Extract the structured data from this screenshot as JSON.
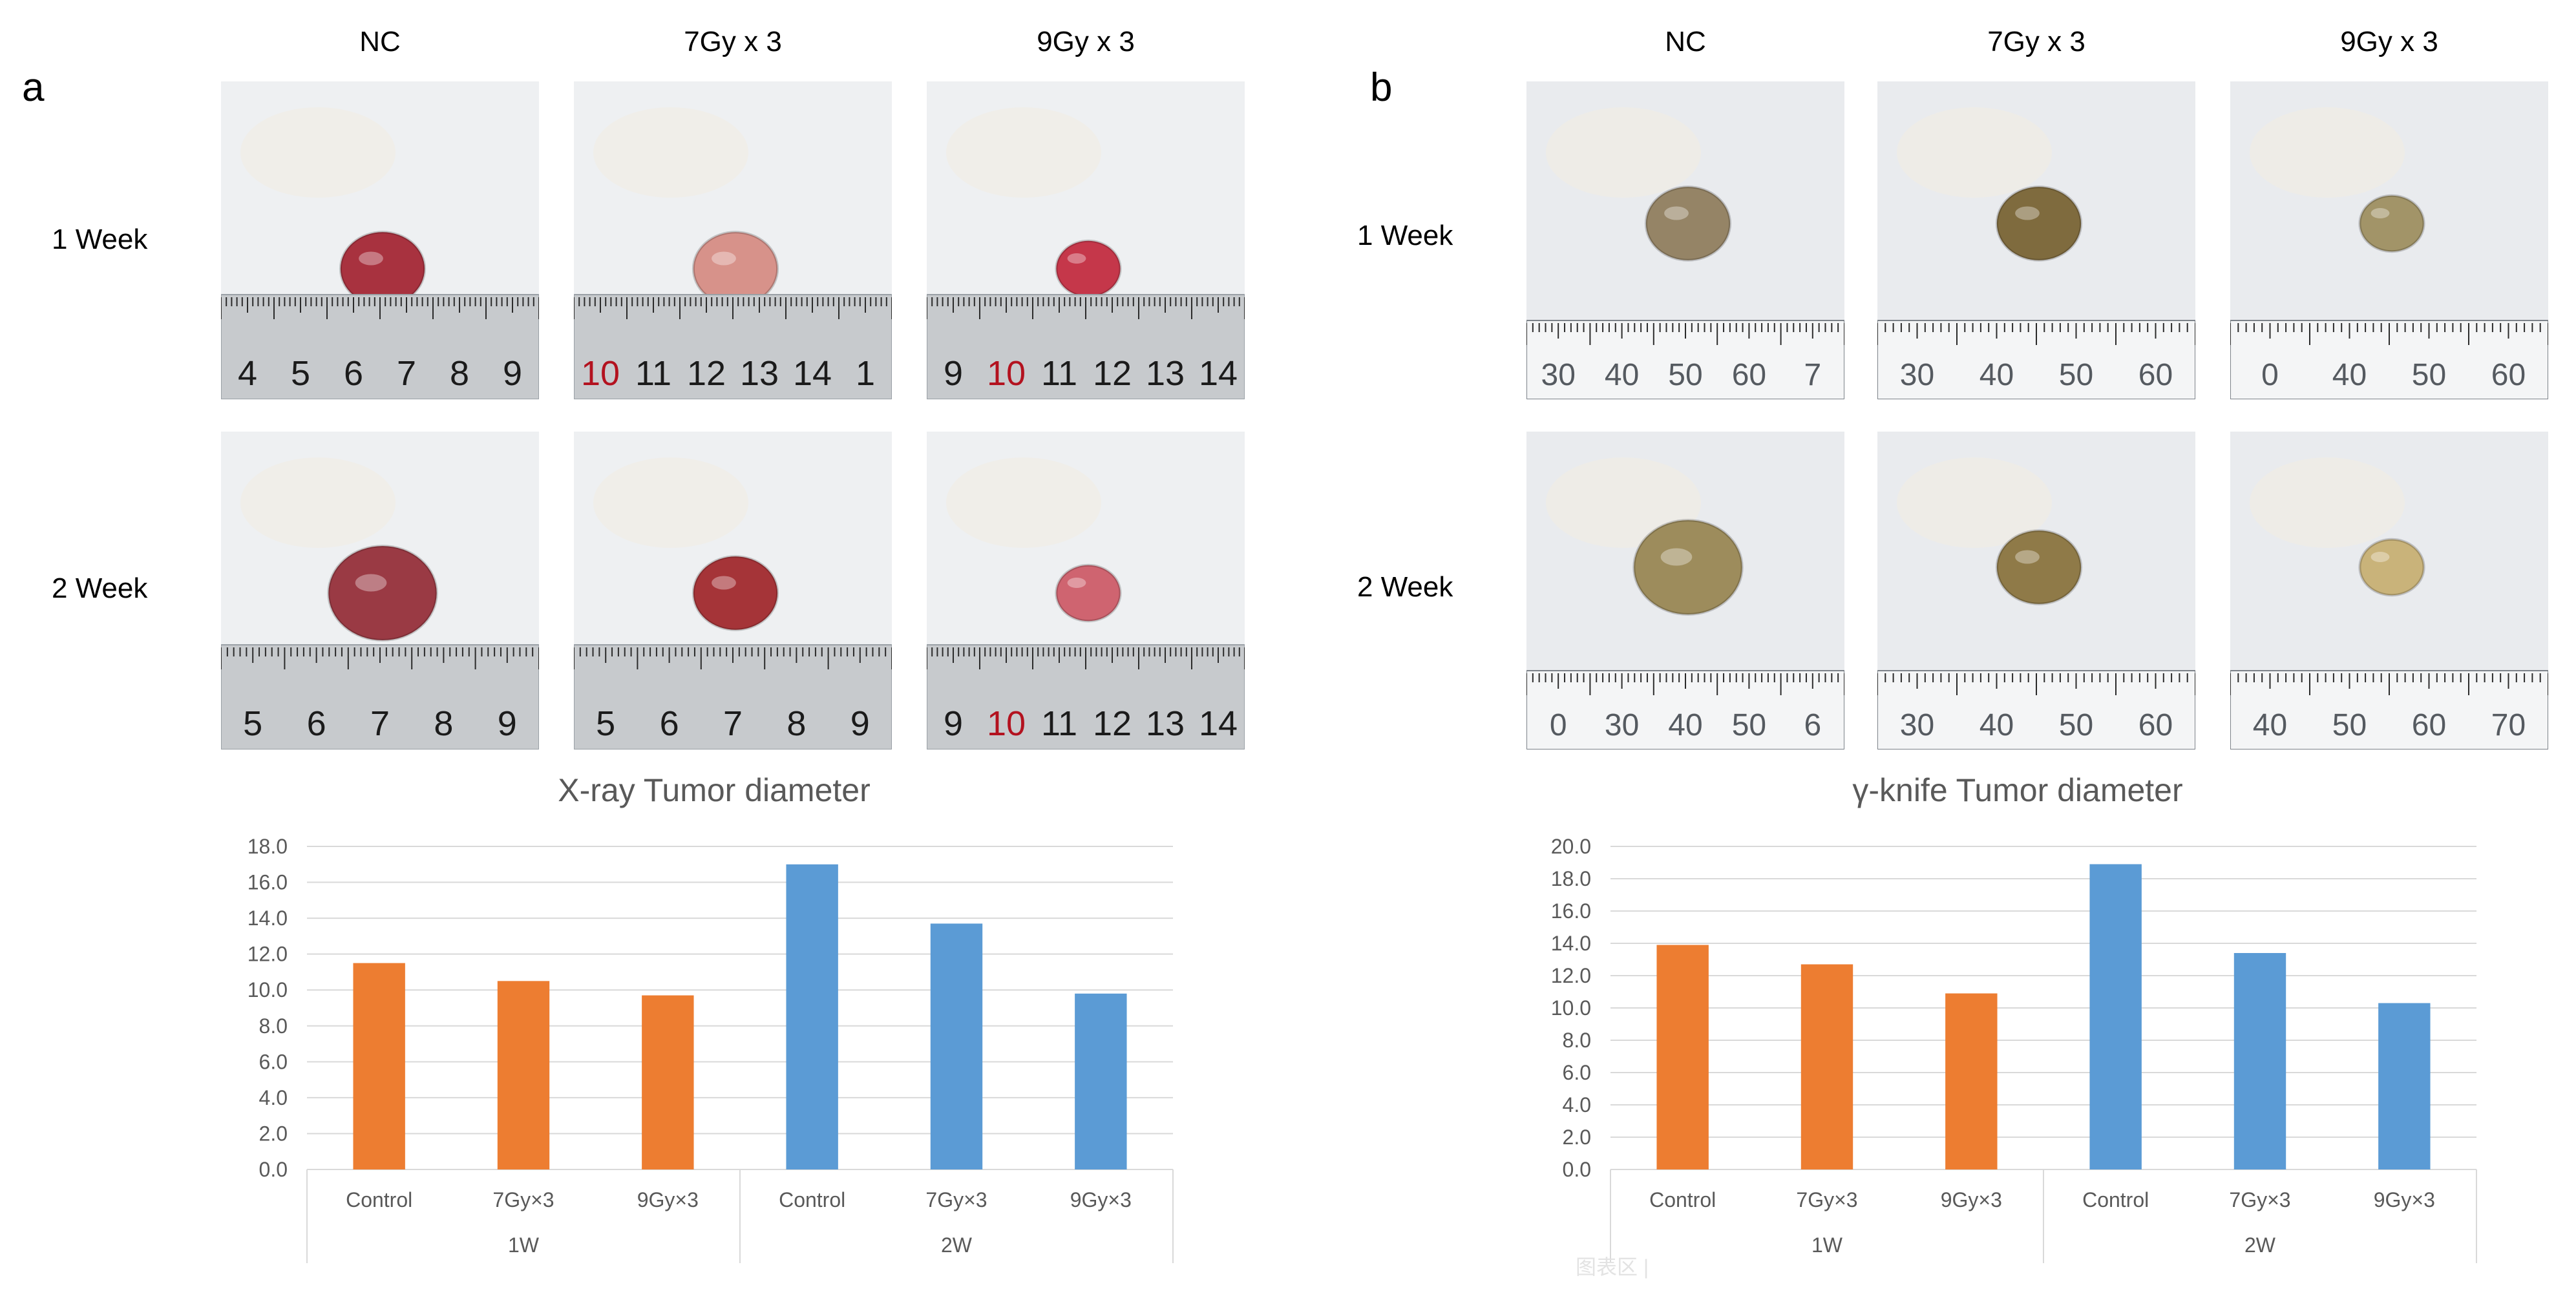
{
  "panels": [
    {
      "letter": "a",
      "columns": [
        "NC",
        "7Gy x 3",
        "9Gy x 3"
      ],
      "rows": [
        "1 Week",
        "2 Week"
      ],
      "photos": [
        [
          {
            "ruler_labels": [
              "4",
              "5",
              "6",
              "7",
              "8",
              "9"
            ],
            "ruler_style": "metal",
            "highlight": null,
            "tissue_color": "#a8323f"
          },
          {
            "ruler_labels": [
              "10",
              "11",
              "12",
              "13",
              "14",
              "1"
            ],
            "ruler_style": "metal",
            "highlight": "10",
            "tissue_color": "#d7928a"
          },
          {
            "ruler_labels": [
              "9",
              "10",
              "11",
              "12",
              "13",
              "14"
            ],
            "ruler_style": "metal",
            "highlight": "10",
            "tissue_color": "#c5374a"
          }
        ],
        [
          {
            "ruler_labels": [
              "5",
              "6",
              "7",
              "8",
              "9"
            ],
            "ruler_style": "metal",
            "highlight": null,
            "tissue_color": "#9a3a44"
          },
          {
            "ruler_labels": [
              "5",
              "6",
              "7",
              "8",
              "9"
            ],
            "ruler_style": "metal",
            "highlight": null,
            "tissue_color": "#a53438"
          },
          {
            "ruler_labels": [
              "9",
              "10",
              "11",
              "12",
              "13",
              "14"
            ],
            "ruler_style": "metal",
            "highlight": "10",
            "tissue_color": "#cf6470"
          }
        ]
      ]
    },
    {
      "letter": "b",
      "columns": [
        "NC",
        "7Gy x 3",
        "9Gy x 3"
      ],
      "rows": [
        "1 Week",
        "2 Week"
      ],
      "photos": [
        [
          {
            "ruler_labels": [
              "30",
              "40",
              "50",
              "60",
              "7"
            ],
            "ruler_style": "plastic",
            "highlight": null,
            "tissue_color": "#958466"
          },
          {
            "ruler_labels": [
              "30",
              "40",
              "50",
              "60"
            ],
            "ruler_style": "plastic",
            "highlight": null,
            "tissue_color": "#7f6b3e"
          },
          {
            "ruler_labels": [
              "0",
              "40",
              "50",
              "60"
            ],
            "ruler_style": "plastic",
            "highlight": null,
            "tissue_color": "#a29468"
          }
        ],
        [
          {
            "ruler_labels": [
              "0",
              "30",
              "40",
              "50",
              "6"
            ],
            "ruler_style": "plastic",
            "highlight": null,
            "tissue_color": "#9d8c5c"
          },
          {
            "ruler_labels": [
              "30",
              "40",
              "50",
              "60"
            ],
            "ruler_style": "plastic",
            "highlight": null,
            "tissue_color": "#8f7a48"
          },
          {
            "ruler_labels": [
              "40",
              "50",
              "60",
              "70"
            ],
            "ruler_style": "plastic",
            "highlight": null,
            "tissue_color": "#c9b37a"
          }
        ]
      ]
    }
  ],
  "colors": {
    "week1_bar": "#ED7D31",
    "week2_bar": "#5B9BD5",
    "gridline": "#d9d9d9",
    "axis_text": "#595959",
    "ruler_highlight": "#b3121f"
  },
  "watermark": "图表区 |",
  "chart_data": [
    {
      "type": "bar",
      "title": "X-ray Tumor diameter",
      "categories": [
        "Control",
        "7Gy×3",
        "9Gy×3",
        "Control",
        "7Gy×3",
        "9Gy×3"
      ],
      "groups": [
        {
          "label": "1W",
          "span": 3
        },
        {
          "label": "2W",
          "span": 3
        }
      ],
      "values": [
        11.5,
        10.5,
        9.7,
        17.0,
        13.7,
        9.8
      ],
      "bar_color_by_group": [
        "#ED7D31",
        "#5B9BD5"
      ],
      "ylim": [
        0,
        18
      ],
      "yticks": [
        "0.0",
        "2.0",
        "4.0",
        "6.0",
        "8.0",
        "10.0",
        "12.0",
        "14.0",
        "16.0",
        "18.0"
      ],
      "grid": true,
      "xlabel": "",
      "ylabel": ""
    },
    {
      "type": "bar",
      "title": "γ-knife Tumor diameter",
      "categories": [
        "Control",
        "7Gy×3",
        "9Gy×3",
        "Control",
        "7Gy×3",
        "9Gy×3"
      ],
      "groups": [
        {
          "label": "1W",
          "span": 3
        },
        {
          "label": "2W",
          "span": 3
        }
      ],
      "values": [
        13.9,
        12.7,
        10.9,
        18.9,
        13.4,
        10.3
      ],
      "bar_color_by_group": [
        "#ED7D31",
        "#5B9BD5"
      ],
      "ylim": [
        0,
        20
      ],
      "yticks": [
        "0.0",
        "2.0",
        "4.0",
        "6.0",
        "8.0",
        "10.0",
        "12.0",
        "14.0",
        "16.0",
        "18.0",
        "20.0"
      ],
      "grid": true,
      "xlabel": "",
      "ylabel": ""
    }
  ]
}
